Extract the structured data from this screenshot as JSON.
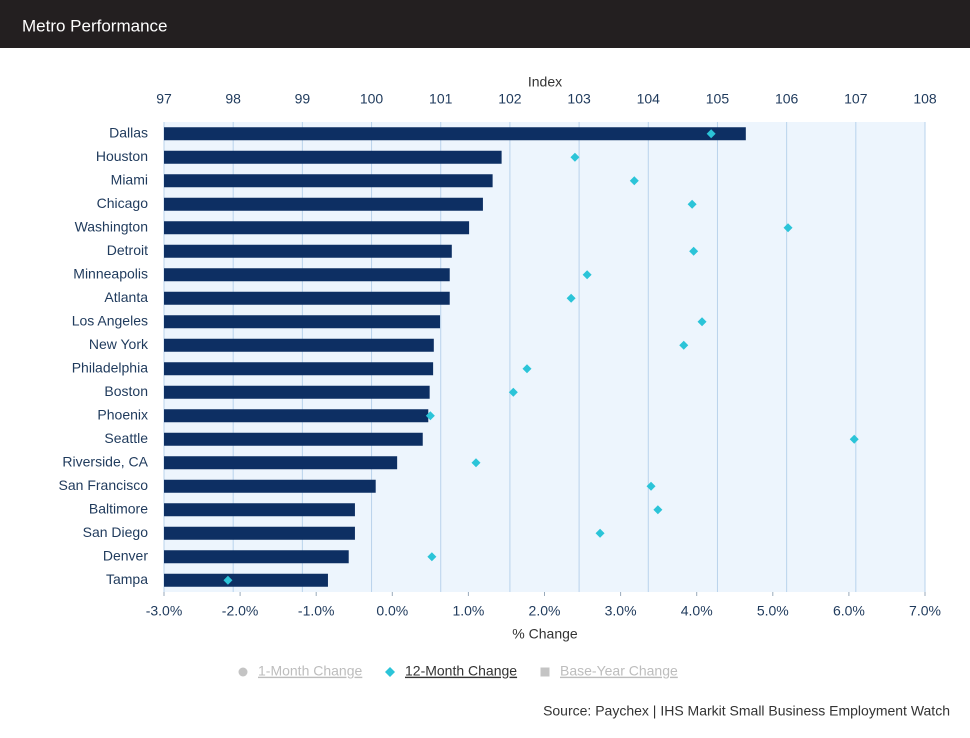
{
  "header": {
    "title": "Metro Performance"
  },
  "chart_data": {
    "type": "bar",
    "orientation": "horizontal",
    "x2_label": "Index",
    "x_label": "% Change",
    "source": "Source: Paychex | IHS Markit Small Business Employment Watch",
    "categories": [
      "Dallas",
      "Houston",
      "Miami",
      "Chicago",
      "Washington",
      "Detroit",
      "Minneapolis",
      "Atlanta",
      "Los Angeles",
      "New York",
      "Philadelphia",
      "Boston",
      "Phoenix",
      "Seattle",
      "Riverside, CA",
      "San Francisco",
      "Baltimore",
      "San Diego",
      "Denver",
      "Tampa"
    ],
    "series": [
      {
        "name": "Base-Year Change",
        "type": "bar",
        "axis": "x2",
        "color": "#0d2f63",
        "values": [
          105.41,
          101.88,
          101.75,
          101.61,
          101.41,
          101.16,
          101.13,
          101.13,
          100.99,
          100.9,
          100.89,
          100.84,
          100.82,
          100.74,
          100.37,
          100.06,
          99.76,
          99.76,
          99.67,
          99.37
        ]
      },
      {
        "name": "12-Month Change",
        "type": "scatter",
        "axis": "x",
        "color": "#2bc4d8",
        "values": [
          4.19,
          2.4,
          3.18,
          3.94,
          5.2,
          3.96,
          2.56,
          2.35,
          4.07,
          3.83,
          1.77,
          1.59,
          0.5,
          6.07,
          1.1,
          3.4,
          3.49,
          2.73,
          0.52,
          -2.16
        ]
      }
    ],
    "x2lim": [
      97,
      108
    ],
    "x2ticks": [
      97,
      98,
      99,
      100,
      101,
      102,
      103,
      104,
      105,
      106,
      107,
      108
    ],
    "xlim": [
      -3,
      7
    ],
    "xticks": [
      {
        "value": -3,
        "label": "-3.0%"
      },
      {
        "value": -2,
        "label": "-2.0%"
      },
      {
        "value": -1,
        "label": "-1.0%"
      },
      {
        "value": 0,
        "label": "0.0%"
      },
      {
        "value": 1,
        "label": "1.0%"
      },
      {
        "value": 2,
        "label": "2.0%"
      },
      {
        "value": 3,
        "label": "3.0%"
      },
      {
        "value": 4,
        "label": "4.0%"
      },
      {
        "value": 5,
        "label": "5.0%"
      },
      {
        "value": 6,
        "label": "6.0%"
      },
      {
        "value": 7,
        "label": "7.0%"
      }
    ],
    "grid": true,
    "legend": [
      {
        "name": "1-Month Change",
        "marker": "circle",
        "color": "#c4c4c4",
        "active": false
      },
      {
        "name": "12-Month Change",
        "marker": "diamond",
        "color": "#2bc4d8",
        "active": true
      },
      {
        "name": "Base-Year Change",
        "marker": "square",
        "color": "#c4c4c4",
        "active": false
      }
    ]
  }
}
